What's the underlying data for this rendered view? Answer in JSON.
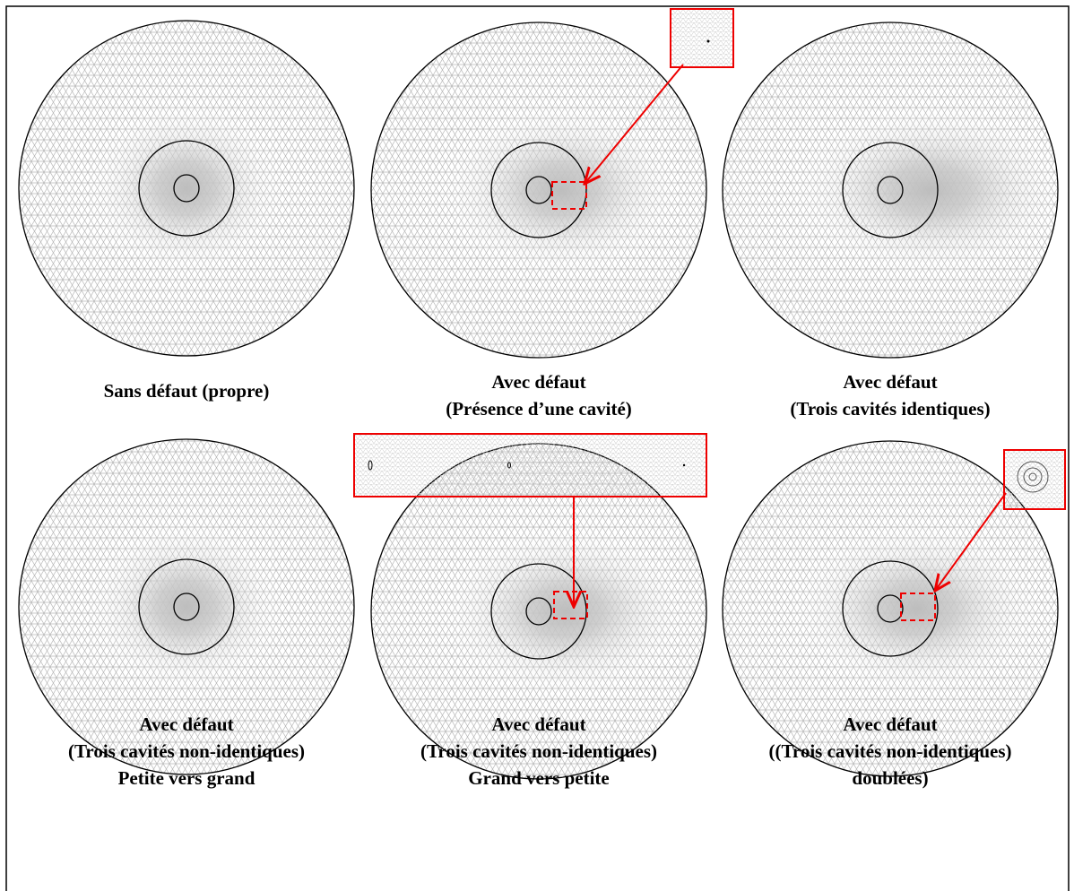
{
  "panels": [
    {
      "caption": [
        "Sans défaut (propre)"
      ]
    },
    {
      "caption": [
        "Avec défaut",
        "(Présence d’une cavité)"
      ]
    },
    {
      "caption": [
        "Avec défaut",
        "(Trois cavités identiques)"
      ]
    },
    {
      "caption": [
        "Avec défaut",
        "(Trois cavités non-identiques)",
        "Petite vers grand"
      ]
    },
    {
      "caption": [
        "Avec défaut",
        "(Trois cavités non-identiques)",
        "Grand vers petite"
      ]
    },
    {
      "caption": [
        "Avec défaut",
        "((Trois cavités non-identiques)",
        "doublées)"
      ]
    }
  ]
}
